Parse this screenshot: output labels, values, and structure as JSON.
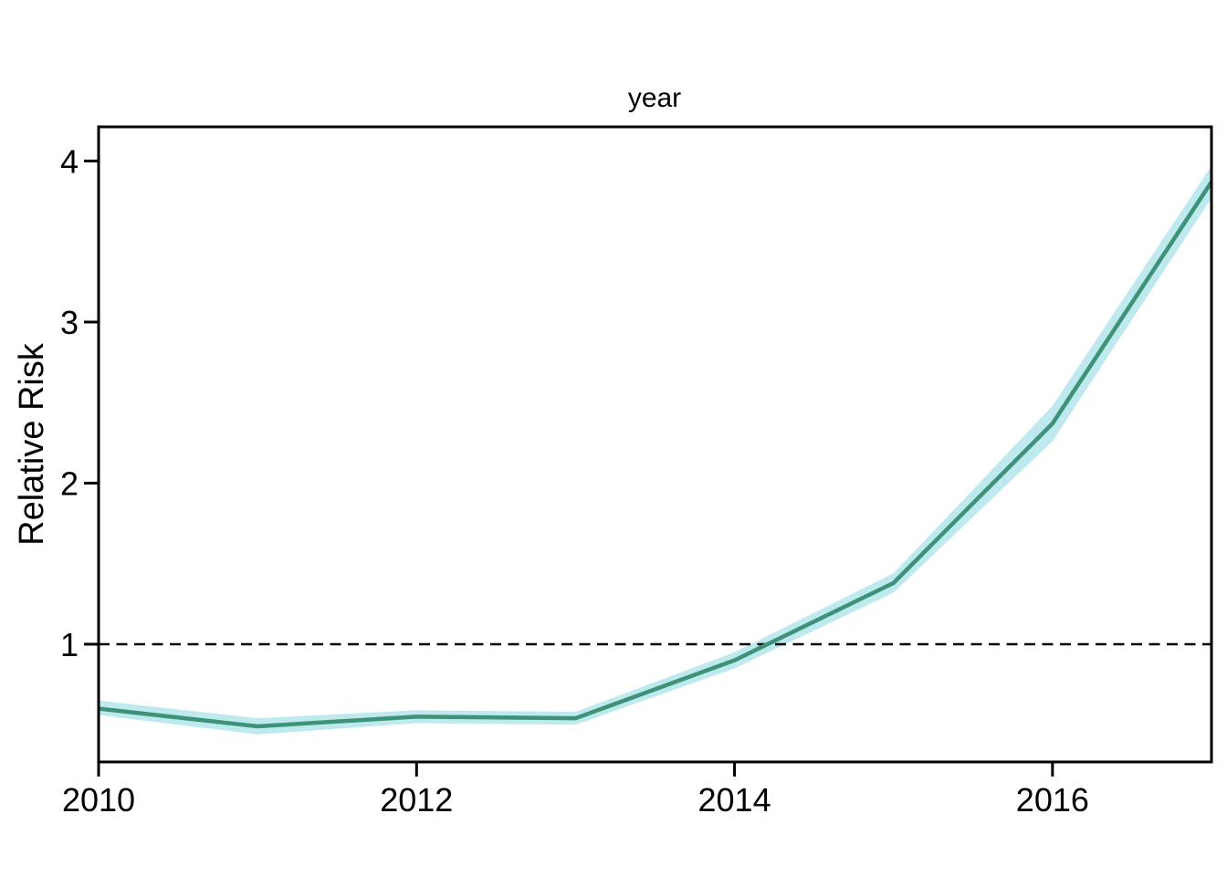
{
  "chart_data": {
    "type": "line",
    "title": "year",
    "xlabel": "",
    "ylabel": "Relative Risk",
    "x": [
      2010,
      2011,
      2012,
      2013,
      2014,
      2015,
      2016,
      2017
    ],
    "series": [
      {
        "name": "relative_risk",
        "values": [
          0.6,
          0.49,
          0.55,
          0.54,
          0.9,
          1.38,
          2.37,
          3.87
        ]
      }
    ],
    "ci_lower": [
      0.56,
      0.44,
      0.51,
      0.5,
      0.85,
      1.32,
      2.26,
      3.77
    ],
    "ci_upper": [
      0.65,
      0.54,
      0.59,
      0.58,
      0.95,
      1.44,
      2.48,
      3.97
    ],
    "reference_line_y": 1,
    "xticks": [
      "2010",
      "2012",
      "2014",
      "2016"
    ],
    "xtick_values": [
      2010,
      2012,
      2014,
      2016
    ],
    "yticks": [
      "1",
      "2",
      "3",
      "4"
    ],
    "ytick_values": [
      1,
      2,
      3,
      4
    ],
    "xlim": [
      2010,
      2017
    ],
    "ylim": [
      0.269,
      4.212
    ],
    "grid": false,
    "legend": "none",
    "band_style": "confidence-ribbon",
    "reference_line_style": "dashed",
    "colors": {
      "line": "#3d9277",
      "band": "#bee9ef",
      "reference": "#000000",
      "axis": "#000000"
    }
  }
}
